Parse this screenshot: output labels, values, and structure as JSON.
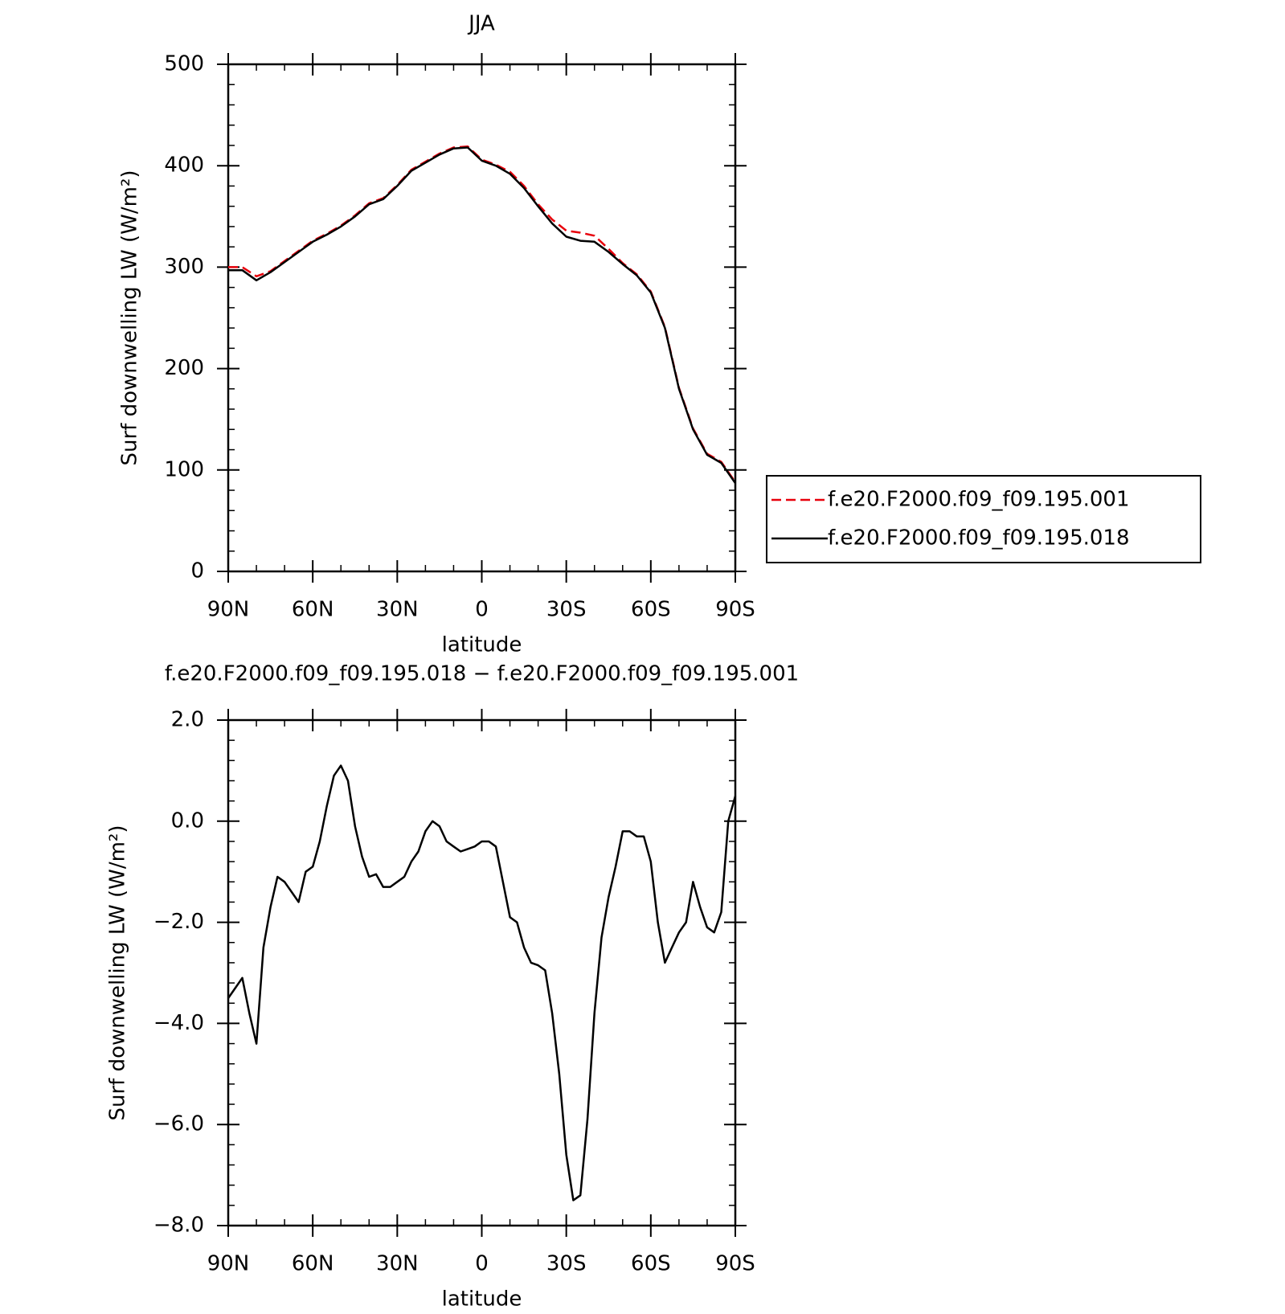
{
  "chart_data": [
    {
      "type": "line",
      "title": "JJA",
      "xlabel": "latitude",
      "ylabel": "Surf downwelling LW (W/m²)",
      "x": [
        90,
        85,
        80,
        75,
        70,
        65,
        60,
        55,
        50,
        45,
        40,
        35,
        30,
        25,
        20,
        15,
        10,
        5,
        0,
        -5,
        -10,
        -15,
        -20,
        -25,
        -30,
        -35,
        -40,
        -45,
        -50,
        -55,
        -60,
        -65,
        -70,
        -75,
        -80,
        -85,
        -90
      ],
      "series": [
        {
          "name": "f.e20.F2000.f09_f09.195.001",
          "color": "#e8000b",
          "dash": true,
          "values": [
            300,
            300,
            291,
            296,
            306,
            316,
            326,
            333,
            341,
            351,
            363,
            368,
            381,
            396,
            404,
            412,
            418,
            419,
            406,
            401,
            394,
            380,
            362,
            347,
            336,
            334,
            331,
            318,
            304,
            293,
            276,
            241,
            181,
            141,
            116,
            108,
            88
          ]
        },
        {
          "name": "f.e20.F2000.f09_f09.195.018",
          "color": "#000000",
          "dash": false,
          "values": [
            297,
            297,
            287,
            295,
            305,
            315,
            325,
            332,
            340,
            350,
            362,
            367,
            380,
            395,
            403,
            411,
            417,
            418,
            405,
            400,
            392,
            378,
            360,
            343,
            330,
            326,
            325,
            315,
            303,
            292,
            275,
            240,
            180,
            140,
            115,
            107,
            87
          ]
        }
      ],
      "xlim": [
        90,
        -90
      ],
      "xticks": [
        {
          "value": 90,
          "label": "90N"
        },
        {
          "value": 60,
          "label": "60N"
        },
        {
          "value": 30,
          "label": "30N"
        },
        0,
        {
          "value": -30,
          "label": "30S"
        },
        {
          "value": -60,
          "label": "60S"
        },
        {
          "value": -90,
          "label": "90S"
        }
      ],
      "ylim": [
        0,
        500
      ],
      "yticks": [
        0,
        100,
        200,
        300,
        400,
        500
      ],
      "legend": "right"
    },
    {
      "type": "line",
      "title": "f.e20.F2000.f09_f09.195.018 − f.e20.F2000.f09_f09.195.001",
      "xlabel": "latitude",
      "ylabel": "Surf downwelling LW (W/m²)",
      "x": [
        90,
        87.5,
        85,
        82.5,
        80,
        77.5,
        75,
        72.5,
        70,
        67.5,
        65,
        62.5,
        60,
        57.5,
        55,
        52.5,
        50,
        47.5,
        45,
        42.5,
        40,
        37.5,
        35,
        32.5,
        30,
        27.5,
        25,
        22.5,
        20,
        17.5,
        15,
        12.5,
        10,
        7.5,
        5,
        2.5,
        0,
        -2.5,
        -5,
        -7.5,
        -10,
        -12.5,
        -15,
        -17.5,
        -20,
        -22.5,
        -25,
        -27.5,
        -30,
        -32.5,
        -35,
        -37.5,
        -40,
        -42.5,
        -45,
        -47.5,
        -50,
        -52.5,
        -55,
        -57.5,
        -60,
        -62.5,
        -65,
        -67.5,
        -70,
        -72.5,
        -75,
        -77.5,
        -80,
        -82.5,
        -85,
        -87.5,
        -90
      ],
      "series": [
        {
          "name": null,
          "color": "#000000",
          "dash": false,
          "values": [
            -3.5,
            -3.3,
            -3.1,
            -3.8,
            -4.4,
            -2.5,
            -1.7,
            -1.1,
            -1.2,
            -1.4,
            -1.6,
            -1.0,
            -0.9,
            -0.4,
            0.3,
            0.9,
            1.1,
            0.8,
            -0.1,
            -0.7,
            -1.1,
            -1.05,
            -1.3,
            -1.3,
            -1.2,
            -1.1,
            -0.8,
            -0.6,
            -0.2,
            0.0,
            -0.1,
            -0.4,
            -0.5,
            -0.6,
            -0.55,
            -0.5,
            -0.4,
            -0.4,
            -0.5,
            -1.2,
            -1.9,
            -2.0,
            -2.5,
            -2.8,
            -2.85,
            -2.95,
            -3.8,
            -5.0,
            -6.6,
            -7.5,
            -7.4,
            -5.9,
            -3.8,
            -2.3,
            -1.5,
            -0.9,
            -0.2,
            -0.2,
            -0.3,
            -0.3,
            -0.8,
            -2.0,
            -2.8,
            -2.5,
            -2.2,
            -2.0,
            -1.2,
            -1.7,
            -2.1,
            -2.2,
            -1.8,
            0.0,
            0.5
          ]
        }
      ],
      "xlim": [
        90,
        -90
      ],
      "xticks": [
        {
          "value": 90,
          "label": "90N"
        },
        {
          "value": 60,
          "label": "60N"
        },
        {
          "value": 30,
          "label": "30N"
        },
        0,
        {
          "value": -30,
          "label": "30S"
        },
        {
          "value": -60,
          "label": "60S"
        },
        {
          "value": -90,
          "label": "90S"
        }
      ],
      "ylim": [
        -8,
        2
      ],
      "yticks": [
        {
          "value": -8,
          "label": "−8.0"
        },
        {
          "value": -6,
          "label": "−6.0"
        },
        {
          "value": -4,
          "label": "−4.0"
        },
        {
          "value": -2,
          "label": "−2.0"
        },
        {
          "value": 0,
          "label": "0.0"
        },
        {
          "value": 2,
          "label": "2.0"
        }
      ]
    }
  ]
}
